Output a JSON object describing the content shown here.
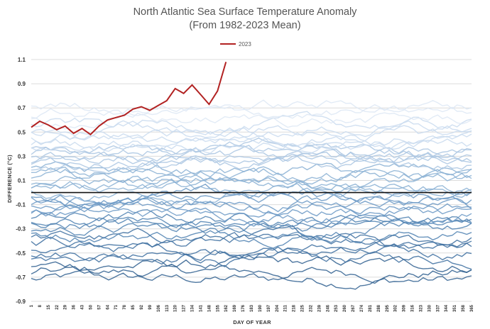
{
  "chart_data": {
    "type": "line",
    "title": "North Atlantic Sea Surface Temperature Anomaly",
    "subtitle": "(From 1982-2023 Mean)",
    "xlabel": "DAY OF YEAR",
    "ylabel": "DIFFERENCE (°C)",
    "ylim": [
      -0.9,
      1.1
    ],
    "xlim": [
      1,
      365
    ],
    "y_ticks": [
      "1.1",
      "0.9",
      "0.7",
      "0.5",
      "0.3",
      "0.1",
      "-0.1",
      "-0.3",
      "-0.5",
      "-0.7",
      "-0.9"
    ],
    "x_ticks": [
      "1",
      "8",
      "15",
      "22",
      "29",
      "36",
      "43",
      "50",
      "57",
      "64",
      "71",
      "78",
      "85",
      "92",
      "99",
      "106",
      "113",
      "120",
      "127",
      "134",
      "141",
      "148",
      "155",
      "162",
      "169",
      "176",
      "183",
      "190",
      "197",
      "204",
      "211",
      "218",
      "225",
      "232",
      "239",
      "246",
      "253",
      "260",
      "267",
      "274",
      "281",
      "288",
      "295",
      "302",
      "309",
      "316",
      "323",
      "330",
      "337",
      "344",
      "351",
      "358",
      "365"
    ],
    "grid": true,
    "zero_line": 0,
    "legend": {
      "position": "top-center",
      "entries": [
        "2023"
      ]
    },
    "highlight_series": {
      "name": "2023",
      "color": "#b22222",
      "x": [
        1,
        8,
        15,
        22,
        29,
        36,
        43,
        50,
        57,
        64,
        71,
        78,
        85,
        92,
        99,
        106,
        113,
        120,
        127,
        134,
        141,
        148,
        155,
        162
      ],
      "values": [
        0.54,
        0.59,
        0.56,
        0.52,
        0.55,
        0.49,
        0.53,
        0.48,
        0.55,
        0.6,
        0.62,
        0.64,
        0.69,
        0.71,
        0.68,
        0.72,
        0.76,
        0.86,
        0.82,
        0.89,
        0.81,
        0.73,
        0.84,
        1.08
      ]
    },
    "background_series": {
      "count": 41,
      "description_colors": [
        "#2f5f8f",
        "#3d6fa0",
        "#4f81b2",
        "#6a98c4",
        "#8ab0d4",
        "#aac6e2",
        "#c9dbee",
        "#dde8f4"
      ],
      "approx_levels": [
        -0.72,
        -0.66,
        -0.6,
        -0.55,
        -0.5,
        -0.46,
        -0.42,
        -0.38,
        -0.34,
        -0.3,
        -0.27,
        -0.24,
        -0.21,
        -0.18,
        -0.15,
        -0.12,
        -0.09,
        -0.06,
        -0.03,
        0.0,
        0.03,
        0.06,
        0.09,
        0.12,
        0.15,
        0.18,
        0.21,
        0.24,
        0.27,
        0.3,
        0.33,
        0.36,
        0.39,
        0.42,
        0.45,
        0.48,
        0.52,
        0.56,
        0.6,
        0.65,
        0.72
      ]
    }
  }
}
